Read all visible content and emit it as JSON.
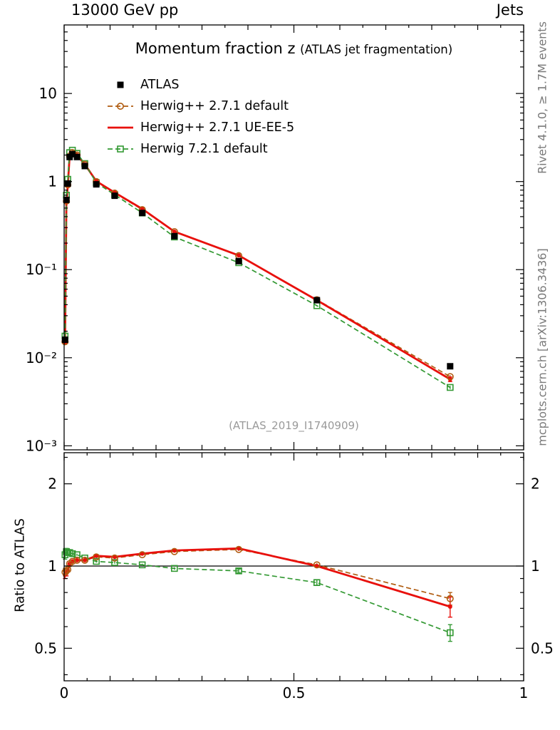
{
  "header": {
    "left_label": "13000 GeV pp",
    "right_label": "Jets"
  },
  "plot_title": {
    "main": "Momentum fraction z",
    "qualifier": "(ATLAS jet fragmentation)"
  },
  "watermark": "(ATLAS_2019_I1740909)",
  "side_notes": {
    "top_rotated": "Rivet 4.1.0, ≥ 1.7M events",
    "bottom_rotated": "mcplots.cern.ch [arXiv:1306.3436]"
  },
  "axes": {
    "ratio_ylabel": "Ratio to ATLAS",
    "x_tick_labels": [
      "0",
      "0.5",
      "1"
    ]
  },
  "legend": [
    {
      "label": "ATLAS",
      "marker": "filled-square",
      "line": "none",
      "color": "#000000"
    },
    {
      "label": "Herwig++ 2.7.1 default",
      "marker": "open-circle",
      "line": "dashed",
      "color": "#b05c10"
    },
    {
      "label": "Herwig++ 2.7.1 UE-EE-5",
      "marker": "filled-circle",
      "line": "solid",
      "color": "#e8100c"
    },
    {
      "label": "Herwig 7.2.1 default",
      "marker": "open-square",
      "line": "dashed",
      "color": "#339933"
    }
  ],
  "chart_data": {
    "type": "line",
    "title": "Momentum fraction z (ATLAS jet fragmentation)",
    "xlabel": "z",
    "xlim": [
      0,
      1
    ],
    "x_ticks": [
      0,
      0.5,
      1
    ],
    "main_panel": {
      "yscale": "log",
      "ylim": [
        0.0009,
        60
      ],
      "y_ticks": [
        10,
        1,
        0.1,
        0.01,
        0.001
      ],
      "y_tick_labels": [
        "10",
        "1",
        "10⁻¹",
        "10⁻²",
        "10⁻³"
      ]
    },
    "ratio_panel": {
      "yscale": "log",
      "ylim": [
        0.38,
        2.6
      ],
      "y_ticks": [
        2,
        1,
        0.5
      ],
      "y_tick_labels": [
        "2",
        "1",
        "0.5"
      ],
      "minor_ticks": [
        0.4,
        0.6,
        0.7,
        0.8,
        0.9,
        2.5
      ],
      "reference_line": 1
    },
    "x": [
      0.002,
      0.005,
      0.008,
      0.012,
      0.018,
      0.028,
      0.045,
      0.07,
      0.11,
      0.17,
      0.24,
      0.38,
      0.55,
      0.84
    ],
    "series": [
      {
        "name": "ATLAS",
        "role": "data",
        "color": "#000000",
        "marker": "filled-square",
        "line": "none",
        "y": [
          0.016,
          0.62,
          0.95,
          1.9,
          2.05,
          1.9,
          1.5,
          0.93,
          0.69,
          0.44,
          0.24,
          0.125,
          0.045,
          0.008
        ]
      },
      {
        "name": "Herwig++ 2.7.1 default",
        "role": "mc",
        "color": "#b05c10",
        "marker": "open-circle",
        "line": "dashed",
        "y": [
          0.0152,
          0.6,
          0.92,
          1.94,
          2.13,
          2.0,
          1.57,
          1.0,
          0.74,
          0.48,
          0.27,
          0.144,
          0.0455,
          0.0061
        ],
        "ratio": [
          0.95,
          0.96,
          0.97,
          1.02,
          1.04,
          1.05,
          1.05,
          1.08,
          1.07,
          1.1,
          1.13,
          1.15,
          1.01,
          0.76
        ],
        "ratio_err": [
          0.03,
          0.02,
          0.01,
          0.01,
          0.01,
          0.01,
          0.01,
          0.01,
          0.01,
          0.01,
          0.01,
          0.015,
          0.015,
          0.04
        ]
      },
      {
        "name": "Herwig++ 2.7.1 UE-EE-5",
        "role": "mc",
        "color": "#e8100c",
        "marker": "filled-circle",
        "line": "solid",
        "y": [
          0.0149,
          0.58,
          0.91,
          1.94,
          2.13,
          2.0,
          1.57,
          1.01,
          0.75,
          0.49,
          0.27,
          0.145,
          0.045,
          0.0057
        ],
        "ratio": [
          0.93,
          0.94,
          0.96,
          1.02,
          1.04,
          1.05,
          1.05,
          1.09,
          1.08,
          1.11,
          1.14,
          1.16,
          1.0,
          0.71
        ],
        "ratio_err": [
          0.03,
          0.02,
          0.01,
          0.01,
          0.01,
          0.01,
          0.01,
          0.01,
          0.01,
          0.01,
          0.01,
          0.015,
          0.015,
          0.06
        ]
      },
      {
        "name": "Herwig 7.2.1 default",
        "role": "mc",
        "color": "#339933",
        "marker": "open-square",
        "line": "dashed",
        "y": [
          0.0176,
          0.7,
          1.06,
          2.13,
          2.27,
          2.09,
          1.6,
          0.97,
          0.71,
          0.44,
          0.235,
          0.12,
          0.039,
          0.0046
        ],
        "ratio": [
          1.1,
          1.13,
          1.12,
          1.12,
          1.11,
          1.1,
          1.07,
          1.04,
          1.03,
          1.01,
          0.98,
          0.96,
          0.87,
          0.57
        ],
        "ratio_err": [
          0.04,
          0.03,
          0.02,
          0.015,
          0.01,
          0.01,
          0.01,
          0.01,
          0.01,
          0.01,
          0.01,
          0.015,
          0.02,
          0.04
        ]
      }
    ]
  }
}
